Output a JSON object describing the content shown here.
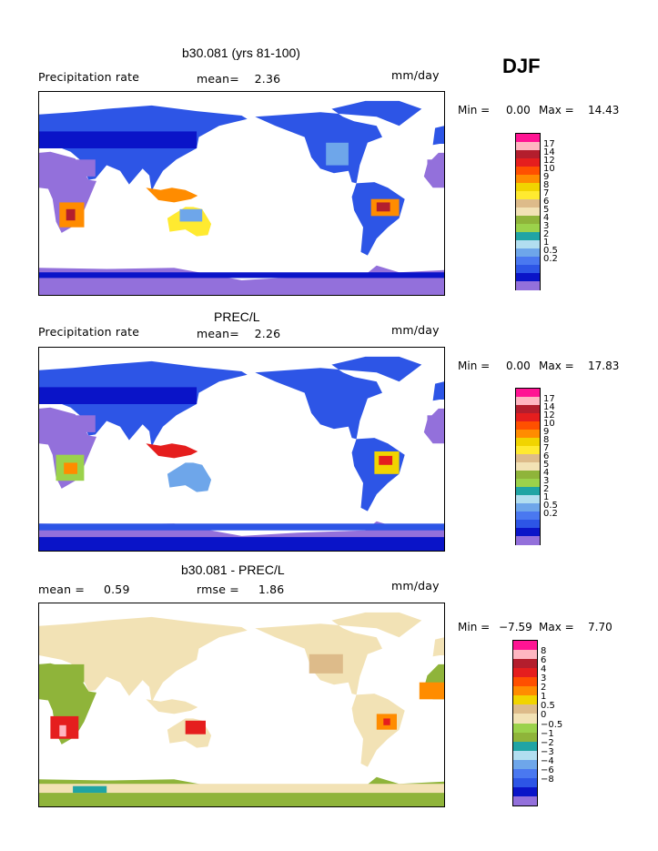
{
  "season": "DJF",
  "colors": {
    "white": "#ffffff",
    "lav": "#9370db",
    "navy": "#0a14c8",
    "royal": "#2d55e6",
    "blue": "#4a78f0",
    "lblue": "#6ea6ea",
    "pblue": "#b2def0",
    "teal": "#20a4a4",
    "lgreen": "#9bd24b",
    "olive": "#8fb43a",
    "cream": "#f2e2b5",
    "tan": "#ddbb8a",
    "gold": "#f1d400",
    "yellow": "#ffea30",
    "orange": "#ff8c00",
    "dorange": "#ff5000",
    "red": "#e51e1e",
    "dred": "#b31e2d",
    "pink": "#ffb6c1",
    "magenta": "#ff1493"
  },
  "panels": [
    {
      "title": "b30.081 (yrs 81-100)",
      "left_label": "Precipitation rate",
      "mid_label": "mean=    2.36",
      "right_label": "mm/day",
      "min_label": "Min =",
      "min_value": "0.00",
      "max_label": "Max =",
      "max_value": "14.43",
      "colorbar_labels": [
        "17",
        "14",
        "12",
        "10",
        "9",
        "8",
        "7",
        "6",
        "5",
        "4",
        "3",
        "2",
        "1",
        "0.5",
        "0.2"
      ],
      "colorbar_colors": [
        "magenta",
        "pink",
        "dred",
        "red",
        "dorange",
        "orange",
        "gold",
        "yellow",
        "tan",
        "cream",
        "olive",
        "lgreen",
        "teal",
        "pblue",
        "lblue",
        "blue",
        "royal",
        "navy",
        "lav"
      ]
    },
    {
      "title": "PREC/L",
      "left_label": "Precipitation rate",
      "mid_label": "mean=    2.26",
      "right_label": "mm/day",
      "min_label": "Min =",
      "min_value": "0.00",
      "max_label": "Max =",
      "max_value": "17.83",
      "colorbar_labels": [
        "17",
        "14",
        "12",
        "10",
        "9",
        "8",
        "7",
        "6",
        "5",
        "4",
        "3",
        "2",
        "1",
        "0.5",
        "0.2"
      ],
      "colorbar_colors": [
        "magenta",
        "pink",
        "dred",
        "red",
        "dorange",
        "orange",
        "gold",
        "yellow",
        "tan",
        "cream",
        "olive",
        "lgreen",
        "teal",
        "pblue",
        "lblue",
        "blue",
        "royal",
        "navy",
        "lav"
      ]
    },
    {
      "title": "b30.081 - PREC/L",
      "left_label": "mean =     0.59",
      "mid_label": "rmse =     1.86",
      "right_label": "mm/day",
      "min_label": "Min =",
      "min_value": "−7.59",
      "max_label": "Max =",
      "max_value": "7.70",
      "colorbar_labels": [
        "8",
        "6",
        "4",
        "3",
        "2",
        "1",
        "0.5",
        "0",
        "−0.5",
        "−1",
        "−2",
        "−3",
        "−4",
        "−6",
        "−8"
      ],
      "colorbar_colors": [
        "magenta",
        "pink",
        "dred",
        "red",
        "dorange",
        "orange",
        "gold",
        "tan",
        "cream",
        "lgreen",
        "olive",
        "teal",
        "pblue",
        "lblue",
        "blue",
        "royal",
        "navy",
        "lav"
      ]
    }
  ]
}
